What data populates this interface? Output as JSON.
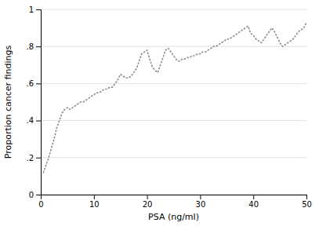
{
  "chart_data": {
    "type": "line",
    "xlabel": "PSA (ng/ml)",
    "ylabel": "Proportion cancer findings",
    "x": [
      0.5,
      1.0,
      1.5,
      2.0,
      2.5,
      3.0,
      3.5,
      4.0,
      4.5,
      5.0,
      5.5,
      6.0,
      6.5,
      7.0,
      7.5,
      8.0,
      8.5,
      9.0,
      9.5,
      10.0,
      10.5,
      11.0,
      11.5,
      12.0,
      12.5,
      13.0,
      13.5,
      14.0,
      14.5,
      15.0,
      15.5,
      16.0,
      16.5,
      17.0,
      17.5,
      18.0,
      18.5,
      19.0,
      19.5,
      20.0,
      20.5,
      21.0,
      21.5,
      22.0,
      22.5,
      23.0,
      23.5,
      24.0,
      24.5,
      25.0,
      25.5,
      26.0,
      26.5,
      27.0,
      27.5,
      28.0,
      28.5,
      29.0,
      29.5,
      30.0,
      30.5,
      31.0,
      31.5,
      32.0,
      32.5,
      33.0,
      33.5,
      34.0,
      34.5,
      35.0,
      35.5,
      36.0,
      36.5,
      37.0,
      37.5,
      38.0,
      38.5,
      39.0,
      39.5,
      40.0,
      40.5,
      41.0,
      41.5,
      42.0,
      42.5,
      43.0,
      43.5,
      44.0,
      44.5,
      45.0,
      45.5,
      46.0,
      46.5,
      47.0,
      47.5,
      48.0,
      48.5,
      49.0,
      49.5,
      50.0
    ],
    "values": [
      0.12,
      0.16,
      0.2,
      0.25,
      0.3,
      0.36,
      0.4,
      0.44,
      0.46,
      0.47,
      0.46,
      0.47,
      0.48,
      0.49,
      0.5,
      0.5,
      0.51,
      0.52,
      0.53,
      0.54,
      0.55,
      0.55,
      0.56,
      0.57,
      0.57,
      0.58,
      0.58,
      0.6,
      0.62,
      0.65,
      0.64,
      0.63,
      0.63,
      0.64,
      0.66,
      0.68,
      0.72,
      0.76,
      0.77,
      0.78,
      0.73,
      0.69,
      0.67,
      0.66,
      0.7,
      0.74,
      0.78,
      0.79,
      0.77,
      0.75,
      0.73,
      0.72,
      0.73,
      0.73,
      0.74,
      0.74,
      0.75,
      0.75,
      0.76,
      0.76,
      0.77,
      0.77,
      0.78,
      0.79,
      0.8,
      0.8,
      0.81,
      0.82,
      0.83,
      0.84,
      0.84,
      0.85,
      0.86,
      0.87,
      0.88,
      0.89,
      0.9,
      0.91,
      0.87,
      0.86,
      0.84,
      0.83,
      0.82,
      0.84,
      0.86,
      0.88,
      0.9,
      0.88,
      0.85,
      0.82,
      0.8,
      0.81,
      0.82,
      0.83,
      0.84,
      0.86,
      0.88,
      0.89,
      0.9,
      0.93
    ],
    "color": "#888888",
    "line_style": "dotted",
    "xlim": [
      0,
      50
    ],
    "ylim": [
      0,
      1
    ],
    "xticks": [
      0,
      10,
      20,
      30,
      40,
      50
    ],
    "yticks": [
      0,
      {
        "value": 0.2,
        "label": ".2"
      },
      {
        "value": 0.4,
        "label": ".4"
      },
      {
        "value": 0.6,
        "label": ".6"
      },
      {
        "value": 0.8,
        "label": ".8"
      },
      1
    ],
    "grid": true
  }
}
